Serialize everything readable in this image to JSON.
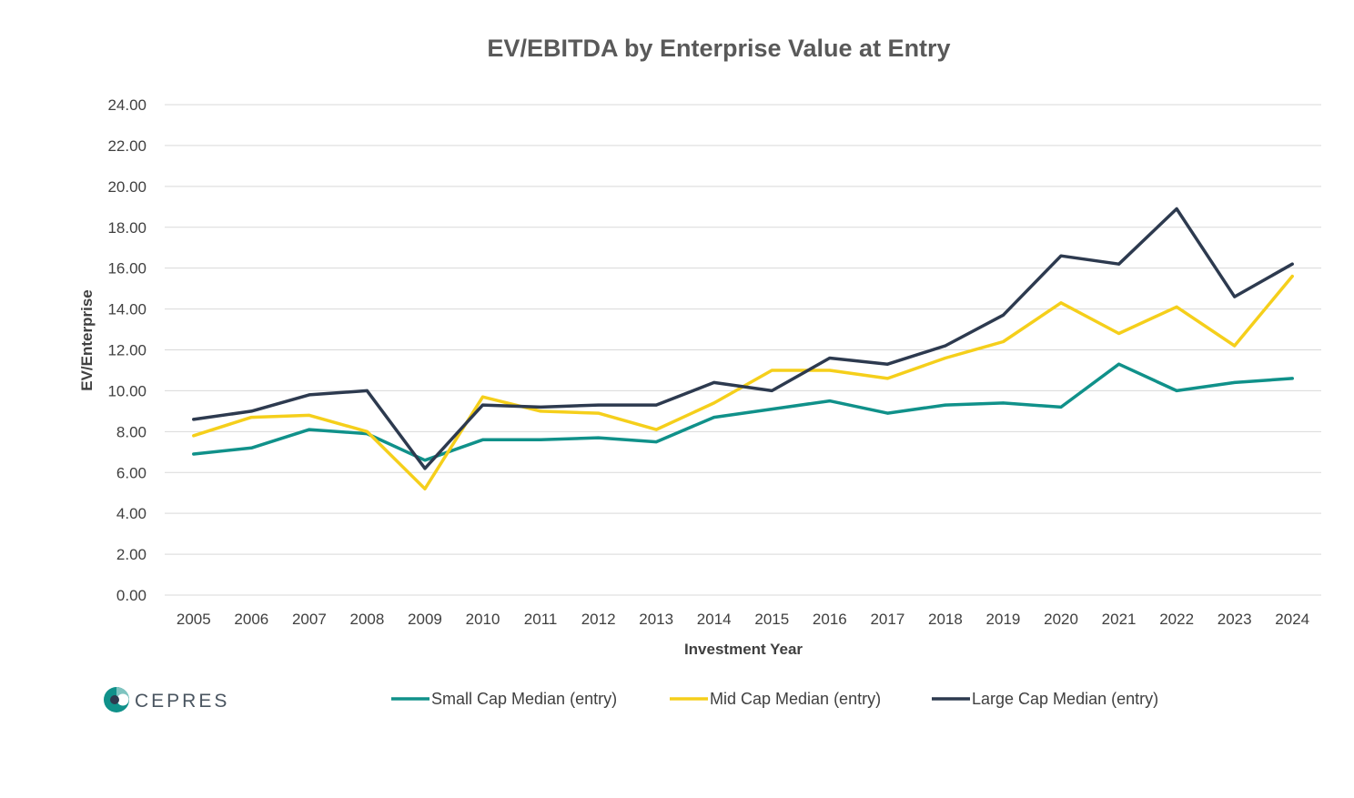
{
  "logo": {
    "text": "CEPRES"
  },
  "chart_data": {
    "type": "line",
    "title": "EV/EBITDA by Enterprise Value at Entry",
    "xlabel": "Investment Year",
    "ylabel": "EV/Enterprise",
    "ylim": [
      0,
      24
    ],
    "ytick_step": 2,
    "ytick_labels": [
      "0.00",
      "2.00",
      "4.00",
      "6.00",
      "8.00",
      "10.00",
      "12.00",
      "14.00",
      "16.00",
      "18.00",
      "20.00",
      "22.00",
      "24.00"
    ],
    "grid": true,
    "legend_position": "bottom",
    "categories": [
      "2005",
      "2006",
      "2007",
      "2008",
      "2009",
      "2010",
      "2011",
      "2012",
      "2013",
      "2014",
      "2015",
      "2016",
      "2017",
      "2018",
      "2019",
      "2020",
      "2021",
      "2022",
      "2023",
      "2024"
    ],
    "series": [
      {
        "name": "Small Cap Median (entry)",
        "color": "#10918a",
        "values": [
          6.9,
          7.2,
          8.1,
          7.9,
          6.6,
          7.6,
          7.6,
          7.7,
          7.5,
          8.7,
          9.1,
          9.5,
          8.9,
          9.3,
          9.4,
          9.2,
          11.3,
          10.0,
          10.4,
          10.6
        ]
      },
      {
        "name": "Mid Cap Median (entry)",
        "color": "#f5cf1b",
        "values": [
          7.8,
          8.7,
          8.8,
          8.0,
          5.2,
          9.7,
          9.0,
          8.9,
          8.1,
          9.4,
          11.0,
          11.0,
          10.6,
          11.6,
          12.4,
          14.3,
          12.8,
          14.1,
          12.2,
          15.6
        ]
      },
      {
        "name": "Large Cap Median (entry)",
        "color": "#2d3a4f",
        "values": [
          8.6,
          9.0,
          9.8,
          10.0,
          6.2,
          9.3,
          9.2,
          9.3,
          9.3,
          10.4,
          10.0,
          11.6,
          11.3,
          12.2,
          13.7,
          16.6,
          16.2,
          18.9,
          14.6,
          16.2
        ]
      }
    ]
  }
}
